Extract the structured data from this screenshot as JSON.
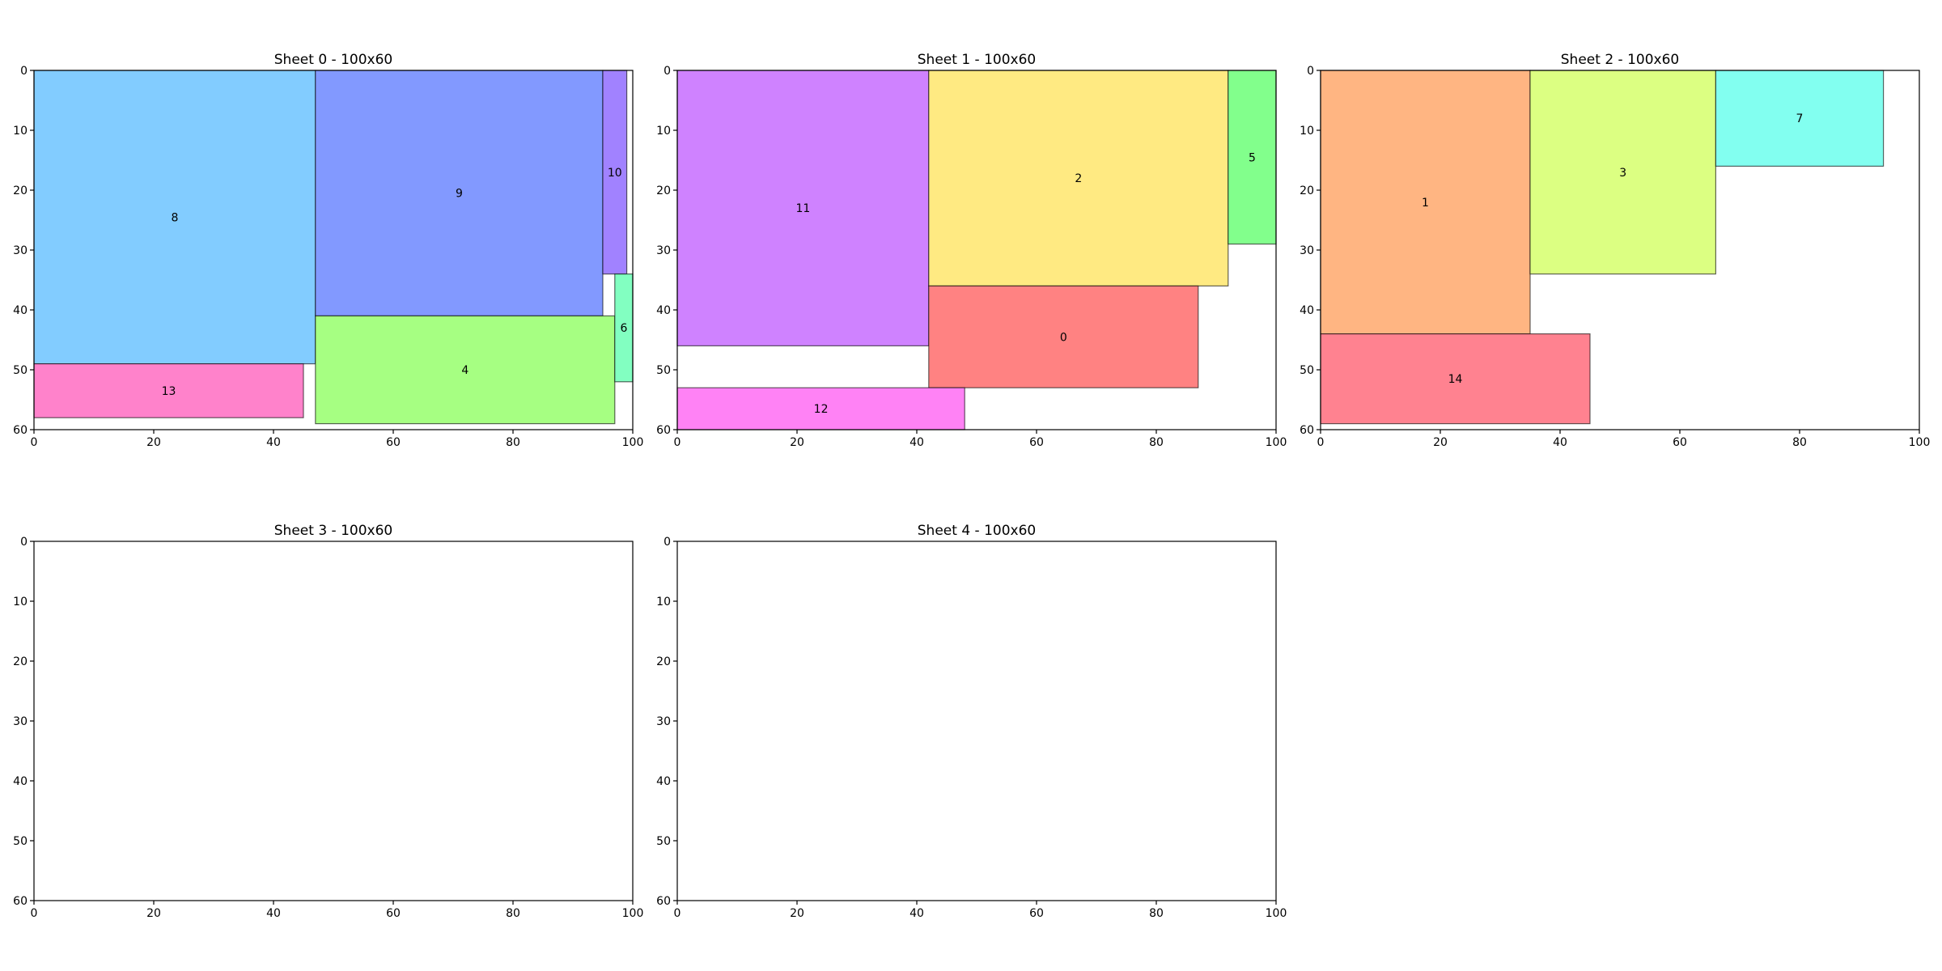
{
  "chart_data": [
    {
      "type": "rect-packing",
      "title": "Sheet 0 - 100x60",
      "xlim": [
        0,
        100
      ],
      "ylim": [
        0,
        60
      ],
      "y_inverted": true,
      "xticks": [
        0,
        20,
        40,
        60,
        80,
        100
      ],
      "yticks": [
        0,
        10,
        20,
        30,
        40,
        50,
        60
      ],
      "pieces": [
        {
          "id": "8",
          "x": 0,
          "y": 0,
          "w": 47,
          "h": 49,
          "color": "#82ccff"
        },
        {
          "id": "9",
          "x": 47,
          "y": 0,
          "w": 48,
          "h": 41,
          "color": "#8299ff"
        },
        {
          "id": "10",
          "x": 95,
          "y": 0,
          "w": 4,
          "h": 34,
          "color": "#a182ff"
        },
        {
          "id": "13",
          "x": 0,
          "y": 49,
          "w": 45,
          "h": 9,
          "color": "#ff82cb"
        },
        {
          "id": "4",
          "x": 47,
          "y": 41,
          "w": 50,
          "h": 18,
          "color": "#a6ff82"
        },
        {
          "id": "6",
          "x": 97,
          "y": 34,
          "w": 3,
          "h": 18,
          "color": "#82ffc1"
        }
      ]
    },
    {
      "type": "rect-packing",
      "title": "Sheet 1 - 100x60",
      "xlim": [
        0,
        100
      ],
      "ylim": [
        0,
        60
      ],
      "y_inverted": true,
      "xticks": [
        0,
        20,
        40,
        60,
        80,
        100
      ],
      "yticks": [
        0,
        10,
        20,
        30,
        40,
        50,
        60
      ],
      "pieces": [
        {
          "id": "11",
          "x": 0,
          "y": 0,
          "w": 42,
          "h": 46,
          "color": "#cf82ff"
        },
        {
          "id": "2",
          "x": 42,
          "y": 0,
          "w": 50,
          "h": 36,
          "color": "#ffea82"
        },
        {
          "id": "5",
          "x": 92,
          "y": 0,
          "w": 8,
          "h": 29,
          "color": "#82ff8c"
        },
        {
          "id": "0",
          "x": 42,
          "y": 36,
          "w": 45,
          "h": 17,
          "color": "#ff8282"
        },
        {
          "id": "12",
          "x": 0,
          "y": 53,
          "w": 48,
          "h": 7,
          "color": "#ff82f5"
        }
      ]
    },
    {
      "type": "rect-packing",
      "title": "Sheet 2 - 100x60",
      "xlim": [
        0,
        100
      ],
      "ylim": [
        0,
        60
      ],
      "y_inverted": true,
      "xticks": [
        0,
        20,
        40,
        60,
        80,
        100
      ],
      "yticks": [
        0,
        10,
        20,
        30,
        40,
        50,
        60
      ],
      "pieces": [
        {
          "id": "1",
          "x": 0,
          "y": 0,
          "w": 35,
          "h": 44,
          "color": "#ffb582"
        },
        {
          "id": "3",
          "x": 35,
          "y": 0,
          "w": 31,
          "h": 34,
          "color": "#dcff82"
        },
        {
          "id": "7",
          "x": 66,
          "y": 0,
          "w": 28,
          "h": 16,
          "color": "#82fff0"
        },
        {
          "id": "14",
          "x": 0,
          "y": 44,
          "w": 45,
          "h": 15,
          "color": "#ff8290"
        }
      ]
    },
    {
      "type": "rect-packing",
      "title": "Sheet 3 - 100x60",
      "xlim": [
        0,
        100
      ],
      "ylim": [
        0,
        60
      ],
      "y_inverted": true,
      "xticks": [
        0,
        20,
        40,
        60,
        80,
        100
      ],
      "yticks": [
        0,
        10,
        20,
        30,
        40,
        50,
        60
      ],
      "pieces": []
    },
    {
      "type": "rect-packing",
      "title": "Sheet 4 - 100x60",
      "xlim": [
        0,
        100
      ],
      "ylim": [
        0,
        60
      ],
      "y_inverted": true,
      "xticks": [
        0,
        20,
        40,
        60,
        80,
        100
      ],
      "yticks": [
        0,
        10,
        20,
        30,
        40,
        50,
        60
      ],
      "pieces": []
    }
  ]
}
